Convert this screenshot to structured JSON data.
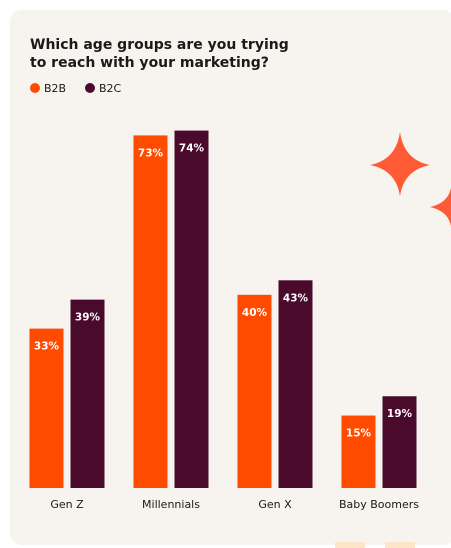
{
  "chart_data": {
    "type": "bar",
    "title": "Which age groups are you trying to reach with your marketing?",
    "categories": [
      "Gen Z",
      "Millennials",
      "Gen X",
      "Baby Boomers"
    ],
    "series": [
      {
        "name": "B2B",
        "color": "#ff4b00",
        "values": [
          33,
          73,
          40,
          15
        ],
        "value_labels": [
          "33%",
          "73%",
          "40%",
          "15%"
        ]
      },
      {
        "name": "B2C",
        "color": "#4a0a2c",
        "values": [
          39,
          74,
          43,
          19
        ],
        "value_labels": [
          "39%",
          "74%",
          "43%",
          "19%"
        ]
      }
    ]
  }
}
